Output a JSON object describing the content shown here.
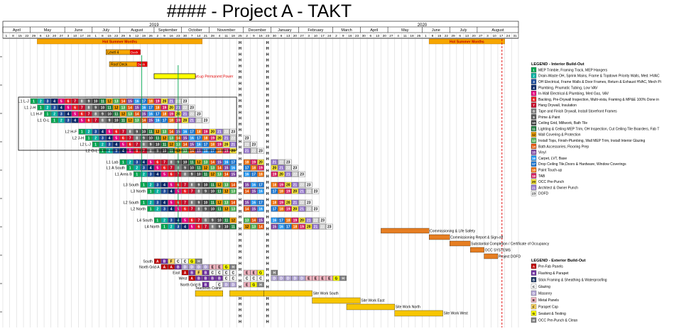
{
  "title": "#### - Project A - TAKT",
  "chart_data": {
    "type": "gantt",
    "years": [
      {
        "label": "2019",
        "week": 22
      },
      {
        "label": "2020",
        "week": 61
      }
    ],
    "months": [
      "April",
      "May",
      "June",
      "July",
      "August",
      "September",
      "October",
      "November",
      "December",
      "January",
      "February",
      "March",
      "April",
      "May",
      "June",
      "July",
      "August"
    ],
    "month_start_weeks": [
      0,
      4,
      9,
      13,
      17,
      22,
      26,
      30,
      35,
      39,
      43,
      48,
      52,
      56,
      61,
      65,
      69
    ],
    "day_labels": [
      "1",
      "8",
      "15",
      "22",
      "29",
      "6",
      "13",
      "20",
      "27",
      "3",
      "10",
      "17",
      "24",
      "1",
      "8",
      "15",
      "22",
      "29",
      "5",
      "12",
      "19",
      "26",
      "2",
      "9",
      "16",
      "23",
      "30",
      "7",
      "14",
      "21",
      "28",
      "4",
      "11",
      "18",
      "25",
      "2",
      "9",
      "16",
      "23",
      "30",
      "6",
      "13",
      "20",
      "27",
      "3",
      "10",
      "17",
      "24",
      "2",
      "9",
      "16",
      "23",
      "30",
      "6",
      "13",
      "20",
      "27",
      "4",
      "11",
      "18",
      "25",
      "1",
      "8",
      "15",
      "22",
      "29",
      "6",
      "13",
      "20",
      "27",
      "3",
      "10",
      "17",
      "24",
      "31"
    ],
    "total_weeks": 75,
    "holiday_weeks": [
      34,
      38
    ],
    "holiday_letter": "H",
    "summer_bands": [
      {
        "label": "Hot Summer Months",
        "start": 5,
        "end": 29
      },
      {
        "label": "Hot Summer Months",
        "start": 62,
        "end": 73
      }
    ],
    "milestone_line_week": 72.6,
    "prelim_bars": [
      {
        "label": "Level 4",
        "start": 15,
        "end": 20,
        "tail": "Deck"
      },
      {
        "label": "Roof Deck",
        "start": 15.5,
        "end": 21,
        "tail": "Deck"
      },
      {
        "label": "Set RTU, AHU, Boiler, Start-up Permanent Power",
        "start": 22,
        "end": 28
      }
    ],
    "interior_zones": [
      {
        "name": "L1 L-J",
        "start": 4,
        "seq": [
          1,
          2,
          3,
          4,
          5,
          6,
          7,
          8,
          9,
          10,
          11,
          12,
          13,
          14,
          15,
          16,
          17,
          18,
          19,
          20,
          21,
          22,
          23
        ]
      },
      {
        "name": "L1 J-H",
        "start": 5,
        "seq": [
          1,
          2,
          3,
          4,
          5,
          6,
          7,
          8,
          9,
          10,
          11,
          12,
          13,
          14,
          15,
          16,
          17,
          18,
          19,
          20,
          21,
          22,
          23
        ]
      },
      {
        "name": "L1 H-F",
        "start": 6,
        "seq": [
          1,
          2,
          3,
          4,
          5,
          6,
          7,
          8,
          9,
          10,
          11,
          12,
          13,
          14,
          15,
          16,
          17,
          18,
          19,
          20,
          21,
          22,
          23
        ]
      },
      {
        "name": "L1 O-L",
        "start": 7,
        "seq": [
          1,
          2,
          3,
          4,
          5,
          6,
          7,
          8,
          9,
          10,
          11,
          12,
          13,
          14,
          15,
          16,
          17,
          18,
          19,
          20,
          21,
          22,
          23
        ]
      },
      {
        "name": "L2 H-F",
        "start": 11,
        "seq": [
          1,
          2,
          3,
          4,
          5,
          6,
          7,
          8,
          9,
          10,
          11,
          12,
          13,
          14,
          15,
          16,
          17,
          18,
          19,
          20,
          21,
          22,
          23
        ]
      },
      {
        "name": "L2 J-H",
        "start": 12,
        "seq": [
          1,
          2,
          3,
          4,
          5,
          6,
          7,
          8,
          9,
          10,
          11,
          12,
          13,
          14,
          15,
          16,
          17,
          18,
          19,
          20,
          21,
          22,
          23
        ]
      },
      {
        "name": "L2 L-J",
        "start": 13,
        "seq": [
          1,
          2,
          3,
          4,
          5,
          6,
          7,
          8,
          9,
          10,
          11,
          12,
          13,
          14,
          15,
          16,
          17,
          18,
          19,
          20,
          21,
          22,
          23
        ]
      },
      {
        "name": "L2 O-L",
        "start": 14,
        "seq": [
          1,
          2,
          3,
          4,
          5,
          6,
          7,
          8,
          9,
          10,
          11,
          12,
          13,
          14,
          15,
          16,
          17,
          18,
          19,
          20,
          21,
          22,
          23
        ]
      },
      {
        "name": "L1 Lab",
        "start": 17,
        "seq": [
          1,
          2,
          3,
          4,
          5,
          6,
          7,
          8,
          9,
          10,
          11,
          12,
          13,
          14,
          15,
          16,
          17,
          18,
          19,
          20,
          21,
          22,
          23
        ]
      },
      {
        "name": "L1 A South",
        "start": 18,
        "seq": [
          1,
          2,
          3,
          4,
          5,
          6,
          7,
          8,
          9,
          10,
          11,
          12,
          13,
          14,
          15,
          16,
          17,
          18,
          19,
          20,
          21,
          22,
          23
        ]
      },
      {
        "name": "L1 Area B",
        "start": 19,
        "seq": [
          1,
          2,
          3,
          4,
          5,
          6,
          7,
          8,
          9,
          10,
          11,
          12,
          13,
          14,
          15,
          16,
          17,
          18,
          19,
          20,
          21,
          22,
          23
        ]
      },
      {
        "name": "L3 South",
        "start": 20,
        "seq": [
          1,
          2,
          3,
          4,
          5,
          6,
          7,
          8,
          9,
          10,
          11,
          12,
          13,
          14,
          15,
          16,
          17,
          18,
          19,
          20,
          21,
          22,
          23
        ]
      },
      {
        "name": "L3 North",
        "start": 21,
        "seq": [
          1,
          2,
          3,
          4,
          5,
          6,
          7,
          8,
          9,
          10,
          11,
          12,
          13,
          14,
          15,
          16,
          17,
          18,
          19,
          20,
          21,
          22,
          23
        ]
      },
      {
        "name": "L2 South",
        "start": 20,
        "seq": [
          1,
          2,
          3,
          4,
          5,
          6,
          7,
          8,
          9,
          10,
          11,
          12,
          13,
          14,
          15,
          16,
          17,
          18,
          19,
          20,
          21,
          22,
          23
        ]
      },
      {
        "name": "L2 North",
        "start": 21,
        "seq": [
          1,
          2,
          3,
          4,
          5,
          6,
          7,
          8,
          9,
          10,
          11,
          12,
          13,
          14,
          15,
          16,
          17,
          18,
          19,
          20,
          21,
          22,
          23
        ]
      },
      {
        "name": "L4 South",
        "start": 22,
        "seq": [
          1,
          2,
          3,
          4,
          5,
          6,
          7,
          8,
          9,
          10,
          11,
          12,
          13,
          14,
          15,
          16,
          17,
          18,
          19,
          20,
          21,
          22,
          23
        ]
      },
      {
        "name": "L4 North",
        "start": 23,
        "seq": [
          1,
          2,
          3,
          4,
          5,
          6,
          7,
          8,
          9,
          10,
          11,
          12,
          13,
          14,
          15,
          16,
          17,
          18,
          19,
          20,
          21,
          22,
          23
        ]
      }
    ],
    "closeout": [
      {
        "label": "Commissioning & Life Safety",
        "start": 55,
        "end": 62
      },
      {
        "label": "Commissioning Report & Sign-off",
        "start": 62,
        "end": 65
      },
      {
        "label": "Substantial Completion / Certificate of Occupancy",
        "start": 65,
        "end": 68
      },
      {
        "label": "OCC SYSTEMS",
        "start": 68,
        "end": 70
      },
      {
        "label": "Project DOFD",
        "start": 70,
        "end": 72
      }
    ],
    "exterior_zones": [
      {
        "name": "South",
        "start": 22,
        "seq": [
          "A",
          "B",
          "F",
          "C",
          "C",
          "G",
          "H"
        ]
      },
      {
        "name": "North Grid A",
        "start": 23,
        "seq": [
          "A",
          "A",
          "B",
          "D",
          "D",
          "D",
          "D",
          "E",
          "E"
        ]
      },
      {
        "name": "East",
        "start": 26,
        "seq": [
          "A",
          "B",
          "F",
          "B",
          "C",
          "C",
          "H"
        ]
      },
      {
        "name": "West",
        "start": 27,
        "seq": [
          "A",
          "B",
          "B",
          "B",
          "B",
          "C",
          "C",
          "C",
          "C",
          "C",
          "D",
          "D",
          "D",
          "D",
          "D",
          "E",
          "E",
          "E",
          "E",
          "G",
          "H"
        ]
      },
      {
        "name": "North Grid B",
        "start": 29,
        "seq": [
          "B"
        ]
      }
    ],
    "exterior_misc": [
      {
        "row": 2,
        "start": 32,
        "seq": [
          "C",
          "C",
          "E",
          "E",
          "G",
          "H"
        ]
      },
      {
        "row": 1,
        "start": 32,
        "seq": [
          "G",
          "H"
        ]
      },
      {
        "row": 4,
        "start": 31,
        "seq": [
          "C",
          "D",
          "D",
          "E",
          "G",
          "H"
        ]
      }
    ],
    "site_bars": [
      {
        "label": "Teardown Crane",
        "start": 28,
        "end": 32
      },
      {
        "label": "",
        "start": 33,
        "end": 38
      },
      {
        "label": "Site Work South",
        "start": 38,
        "end": 45
      },
      {
        "label": "Site Work East",
        "start": 45,
        "end": 52
      },
      {
        "label": "Site Work North",
        "start": 50,
        "end": 57
      },
      {
        "label": "Site Work West",
        "start": 57,
        "end": 64
      }
    ],
    "interior_legend_title": "LEGEND - Interior Build-Out",
    "interior_legend": [
      {
        "code": "1",
        "text": "MEP Trimble, Framing Track, MEP Hangers",
        "color": "#00a651"
      },
      {
        "code": "2",
        "text": "Drain-Waste OH, Sprink Mains, Frame & Topdown Priority Walls, Med. HVAC",
        "color": "#00b0a0"
      },
      {
        "code": "3",
        "text": "OH Electrical, Frame Walls & Door Frames, Return & Exhaust HVAC, Mech Pi",
        "color": "#1f4e9c"
      },
      {
        "code": "4",
        "text": "Plumbing, Pnumatic Tubing, Low VAV",
        "color": "#0b2a6b"
      },
      {
        "code": "5",
        "text": "In-Wall Electrical & Plumbing, Med Gas, VAV",
        "color": "#e6007e"
      },
      {
        "code": "6",
        "text": "Backing, Pre-Drywall Inspection, Multi-vista, Framing & MP&E 100% Done in",
        "color": "#ec1c24"
      },
      {
        "code": "7",
        "text": "Hang Drywall, Insulation",
        "color": "#c8102e"
      },
      {
        "code": "8",
        "text": "Tape and Finish Drywall, Install Storefront Frames",
        "color": "#808080"
      },
      {
        "code": "9",
        "text": "Prime & Paint",
        "color": "#5a5a5a"
      },
      {
        "code": "10",
        "text": "Ceiling Grid, Millwork, Bath Tile",
        "color": "#3c3c3c"
      },
      {
        "code": "11",
        "text": "Lighting & Ceiling MEP Trim, OH Inspection, Cut Ceiling Tile Boarders, Fab T",
        "color": "#1a7a3a"
      },
      {
        "code": "12",
        "text": "Wall Covering & Protection",
        "color": "#f7a600"
      },
      {
        "code": "13",
        "text": "Install Tops, Finish-Plumbing, Wall MEP Trim, Install Interior Glazing",
        "color": "#4caf50"
      },
      {
        "code": "14",
        "text": "Bath Accessories, Flooring Prep",
        "color": "#e65100"
      },
      {
        "code": "15",
        "text": "Vinyl",
        "color": "#7b3fa0"
      },
      {
        "code": "16",
        "text": "Carpet, LVT, Base",
        "color": "#2196f3"
      },
      {
        "code": "17",
        "text": "Drop Ceiling Tile,Doors & Hardware, Window Coverings",
        "color": "#1976d2"
      },
      {
        "code": "18",
        "text": "Paint Touch-up",
        "color": "#ef6c00"
      },
      {
        "code": "19",
        "text": "TAB",
        "color": "#d81b60"
      },
      {
        "code": "20",
        "text": "OCC Pre-Punch",
        "color": "#ffeb3b"
      },
      {
        "code": "21",
        "text": "Architect & Owner Punch",
        "color": "#9575cd"
      },
      {
        "code": "23",
        "text": "DOFD",
        "color": "#ffffff"
      }
    ],
    "exterior_legend_title": "LEGEND - Exterior Build-Out",
    "exterior_legend": [
      {
        "code": "A",
        "text": "Pre-Fab Panels",
        "color": "#c00000"
      },
      {
        "code": "B",
        "text": "Flashing & Parapet",
        "color": "#7030a0"
      },
      {
        "code": "B",
        "text": "Stick Framing & Sheathing & Waterproofing",
        "color": "#1f3864"
      },
      {
        "code": "C",
        "text": "Glazing",
        "color": "#ffffff"
      },
      {
        "code": "D",
        "text": "Masonry",
        "color": "#b4a7d6"
      },
      {
        "code": "E",
        "text": "Metal Panels",
        "color": "#f4b6c2"
      },
      {
        "code": "F",
        "text": "Parapet Cap",
        "color": "#ffd966"
      },
      {
        "code": "G",
        "text": "Sealant & Testing",
        "color": "#ffff00"
      },
      {
        "code": "H",
        "text": "OCC Pre-Punch & Clean",
        "color": "#808080"
      }
    ]
  }
}
